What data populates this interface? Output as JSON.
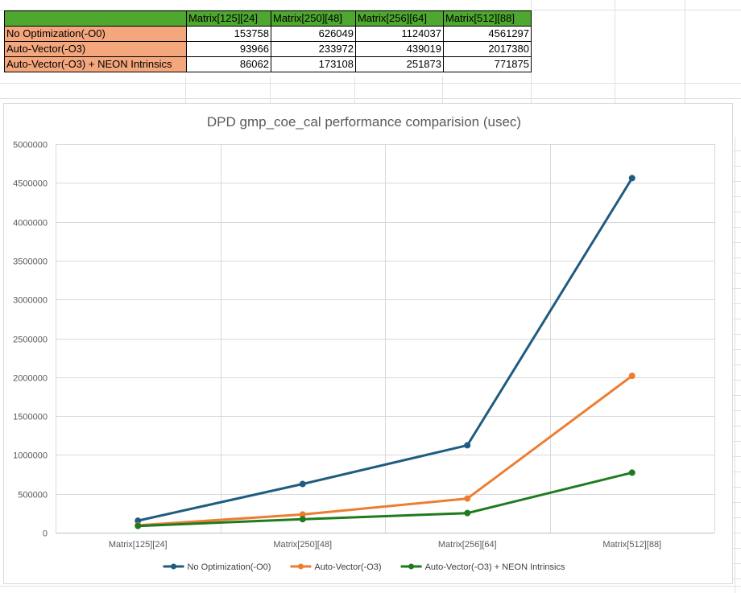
{
  "table": {
    "columns": [
      "Matrix[125][24]",
      "Matrix[250][48]",
      "Matrix[256][64]",
      "Matrix[512][88]"
    ],
    "rows": [
      {
        "label": "No Optimization(-O0)",
        "values": [
          "153758",
          "626049",
          "1124037",
          "4561297"
        ]
      },
      {
        "label": "Auto-Vector(-O3)",
        "values": [
          "93966",
          "233972",
          "439019",
          "2017380"
        ]
      },
      {
        "label": "Auto-Vector(-O3) + NEON Intrinsics",
        "values": [
          "86062",
          "173108",
          "251873",
          "771875"
        ]
      }
    ]
  },
  "chart_data": {
    "type": "line",
    "title": "DPD gmp_coe_cal performance comparision  (usec)",
    "categories": [
      "Matrix[125][24]",
      "Matrix[250][48]",
      "Matrix[256][64]",
      "Matrix[512][88]"
    ],
    "series": [
      {
        "name": "No Optimization(-O0)",
        "color": "#1f5c80",
        "values": [
          153758,
          626049,
          1124037,
          4561297
        ]
      },
      {
        "name": "Auto-Vector(-O3)",
        "color": "#ed7d31",
        "values": [
          93966,
          233972,
          439019,
          2017380
        ]
      },
      {
        "name": "Auto-Vector(-O3) + NEON Intrinsics",
        "color": "#1e7b1e",
        "values": [
          86062,
          173108,
          251873,
          771875
        ]
      }
    ],
    "ylim": [
      0,
      5000000
    ],
    "yticks": [
      "0",
      "500000",
      "1000000",
      "1500000",
      "2000000",
      "2500000",
      "3000000",
      "3500000",
      "4000000",
      "4500000",
      "5000000"
    ],
    "grid": true,
    "legend_position": "bottom"
  }
}
